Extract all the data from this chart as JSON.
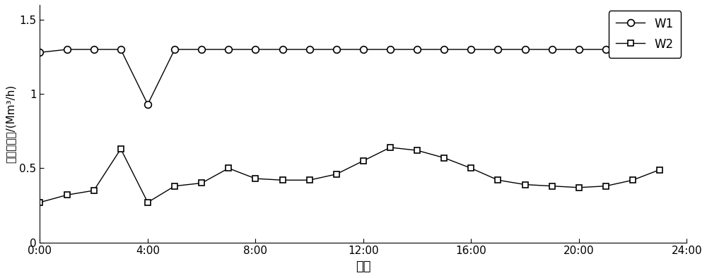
{
  "title": "",
  "xlabel": "时刻",
  "ylabel": "气源产气量/(Mm³/h)",
  "xlim": [
    0,
    24
  ],
  "ylim": [
    0,
    1.6
  ],
  "yticks": [
    0,
    0.5,
    1.0,
    1.5
  ],
  "ytick_labels": [
    "0",
    "0.5",
    "1",
    "1.5"
  ],
  "xtick_labels": [
    "0:00",
    "4:00",
    "8:00",
    "12:00",
    "16:00",
    "20:00",
    "24:00"
  ],
  "xtick_positions": [
    0,
    4,
    8,
    12,
    16,
    20,
    24
  ],
  "W1_x": [
    0,
    1,
    2,
    3,
    4,
    5,
    6,
    7,
    8,
    9,
    10,
    11,
    12,
    13,
    14,
    15,
    16,
    17,
    18,
    19,
    20,
    21,
    22,
    23
  ],
  "W1_y": [
    1.28,
    1.3,
    1.3,
    1.3,
    0.93,
    1.3,
    1.3,
    1.3,
    1.3,
    1.3,
    1.3,
    1.3,
    1.3,
    1.3,
    1.3,
    1.3,
    1.3,
    1.3,
    1.3,
    1.3,
    1.3,
    1.3,
    1.3,
    1.3
  ],
  "W2_x": [
    0,
    1,
    2,
    3,
    4,
    5,
    6,
    7,
    8,
    9,
    10,
    11,
    12,
    13,
    14,
    15,
    16,
    17,
    18,
    19,
    20,
    21,
    22,
    23
  ],
  "W2_y": [
    0.27,
    0.32,
    0.35,
    0.63,
    0.27,
    0.38,
    0.4,
    0.5,
    0.43,
    0.42,
    0.42,
    0.46,
    0.55,
    0.64,
    0.62,
    0.57,
    0.5,
    0.42,
    0.39,
    0.38,
    0.37,
    0.38,
    0.42,
    0.49
  ],
  "line_color": "#000000",
  "background_color": "#ffffff",
  "legend_labels": [
    "W1",
    "W2"
  ],
  "figsize": [
    10.0,
    3.94
  ],
  "dpi": 100
}
